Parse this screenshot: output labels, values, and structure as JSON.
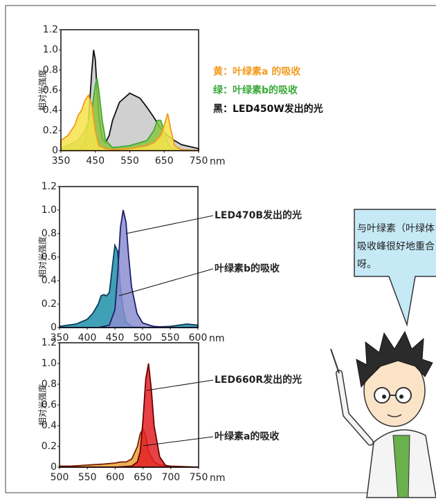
{
  "chart_data": [
    {
      "type": "area",
      "ylabel": "相对光强度",
      "xlabel": "nm",
      "legend": "right",
      "xlim": [
        350,
        750
      ],
      "xticks": [
        350,
        450,
        550,
        650,
        750
      ],
      "ylim": [
        0,
        1.2
      ],
      "yticks": [
        0,
        0.2,
        0.4,
        0.6,
        0.8,
        {
          "value": 1,
          "label": "1.0"
        },
        1.2
      ],
      "series": [
        {
          "name": "黄：叶绿素a 的吸收",
          "color": "#f39a1e",
          "fill": "#f7e34a",
          "x": [
            350,
            370,
            390,
            400,
            410,
            420,
            430,
            440,
            450,
            460,
            480,
            500,
            550,
            600,
            620,
            640,
            650,
            660,
            670,
            680,
            700,
            750
          ],
          "values": [
            0.1,
            0.15,
            0.25,
            0.35,
            0.4,
            0.5,
            0.55,
            0.45,
            0.2,
            0.05,
            0.02,
            0.01,
            0.02,
            0.05,
            0.08,
            0.15,
            0.25,
            0.37,
            0.2,
            0.05,
            0.01,
            0
          ]
        },
        {
          "name": "绿：叶绿素b的吸收",
          "color": "#3aaa3a",
          "fill": "#8cc63f",
          "x": [
            350,
            400,
            420,
            430,
            440,
            450,
            455,
            460,
            470,
            480,
            500,
            550,
            600,
            620,
            630,
            640,
            650,
            660,
            670,
            700,
            750
          ],
          "values": [
            0.02,
            0.1,
            0.2,
            0.3,
            0.4,
            0.65,
            0.72,
            0.6,
            0.3,
            0.1,
            0.03,
            0.05,
            0.1,
            0.2,
            0.3,
            0.3,
            0.2,
            0.08,
            0.03,
            0.01,
            0
          ]
        },
        {
          "name": "黑：LED450W发出的光",
          "color": "#111111",
          "fill": "#c8c8c8",
          "x": [
            350,
            400,
            420,
            430,
            440,
            445,
            450,
            455,
            460,
            470,
            480,
            490,
            500,
            520,
            550,
            580,
            600,
            620,
            640,
            660,
            680,
            700,
            750
          ],
          "values": [
            0,
            0,
            0.05,
            0.3,
            0.8,
            1.0,
            0.9,
            0.6,
            0.35,
            0.12,
            0.08,
            0.15,
            0.3,
            0.48,
            0.57,
            0.52,
            0.43,
            0.33,
            0.22,
            0.15,
            0.1,
            0.06,
            0.02
          ]
        }
      ]
    },
    {
      "type": "area",
      "ylabel": "相对光强度",
      "xlabel": "nm",
      "legend": "callout",
      "xlim": [
        350,
        600
      ],
      "xticks": [
        350,
        400,
        450,
        500,
        550,
        600
      ],
      "ylim": [
        0,
        1.2
      ],
      "yticks": [
        0,
        0.2,
        0.4,
        0.6,
        0.8,
        {
          "value": 1,
          "label": "1.0"
        },
        1.2
      ],
      "series": [
        {
          "name": "LED470B发出的光",
          "color": "#1d1d6b",
          "fill": "#8b8fd0",
          "x": [
            350,
            420,
            440,
            450,
            455,
            460,
            465,
            470,
            475,
            480,
            490,
            500,
            520,
            550,
            600
          ],
          "values": [
            0,
            0,
            0.02,
            0.15,
            0.45,
            0.85,
            1.0,
            0.9,
            0.6,
            0.35,
            0.12,
            0.04,
            0.01,
            0,
            0
          ]
        },
        {
          "name": "叶绿素b的吸收",
          "color": "#0b3d5c",
          "fill": "#1f8fa8",
          "x": [
            350,
            380,
            400,
            410,
            420,
            425,
            430,
            435,
            440,
            445,
            450,
            455,
            460,
            465,
            470,
            480,
            500,
            550,
            580,
            600
          ],
          "values": [
            0.01,
            0.03,
            0.07,
            0.12,
            0.2,
            0.27,
            0.28,
            0.27,
            0.3,
            0.5,
            0.7,
            0.65,
            0.35,
            0.15,
            0.05,
            0.01,
            0,
            0.01,
            0.03,
            0.02
          ]
        }
      ]
    },
    {
      "type": "area",
      "ylabel": "相对光强度",
      "xlabel": "nm",
      "legend": "callout",
      "xlim": [
        500,
        750
      ],
      "xticks": [
        500,
        550,
        600,
        650,
        700,
        750
      ],
      "ylim": [
        0,
        1.2
      ],
      "yticks": [
        0,
        0.2,
        0.4,
        0.6,
        0.8,
        {
          "value": 1,
          "label": "1.0"
        },
        1.2
      ],
      "series": [
        {
          "name": "LED660R发出的光",
          "color": "#6b0000",
          "fill": "#e31e24",
          "x": [
            500,
            600,
            630,
            640,
            645,
            650,
            655,
            660,
            665,
            670,
            680,
            690,
            700,
            750
          ],
          "values": [
            0,
            0,
            0.01,
            0.05,
            0.15,
            0.45,
            0.85,
            1.0,
            0.75,
            0.4,
            0.1,
            0.02,
            0,
            0
          ]
        },
        {
          "name": "叶绿素a的吸收",
          "color": "#7a1a00",
          "fill": "#e8a33a",
          "x": [
            500,
            520,
            550,
            580,
            600,
            610,
            620,
            630,
            640,
            645,
            650,
            655,
            660,
            670,
            680,
            700,
            750
          ],
          "values": [
            0.01,
            0.01,
            0.02,
            0.03,
            0.04,
            0.05,
            0.05,
            0.08,
            0.2,
            0.32,
            0.37,
            0.3,
            0.15,
            0.05,
            0.02,
            0.01,
            0
          ]
        }
      ]
    }
  ],
  "bubble": {
    "lines": [
      "与叶绿素（叶绿体",
      "吸收峰很好地重合",
      "呀。"
    ]
  }
}
